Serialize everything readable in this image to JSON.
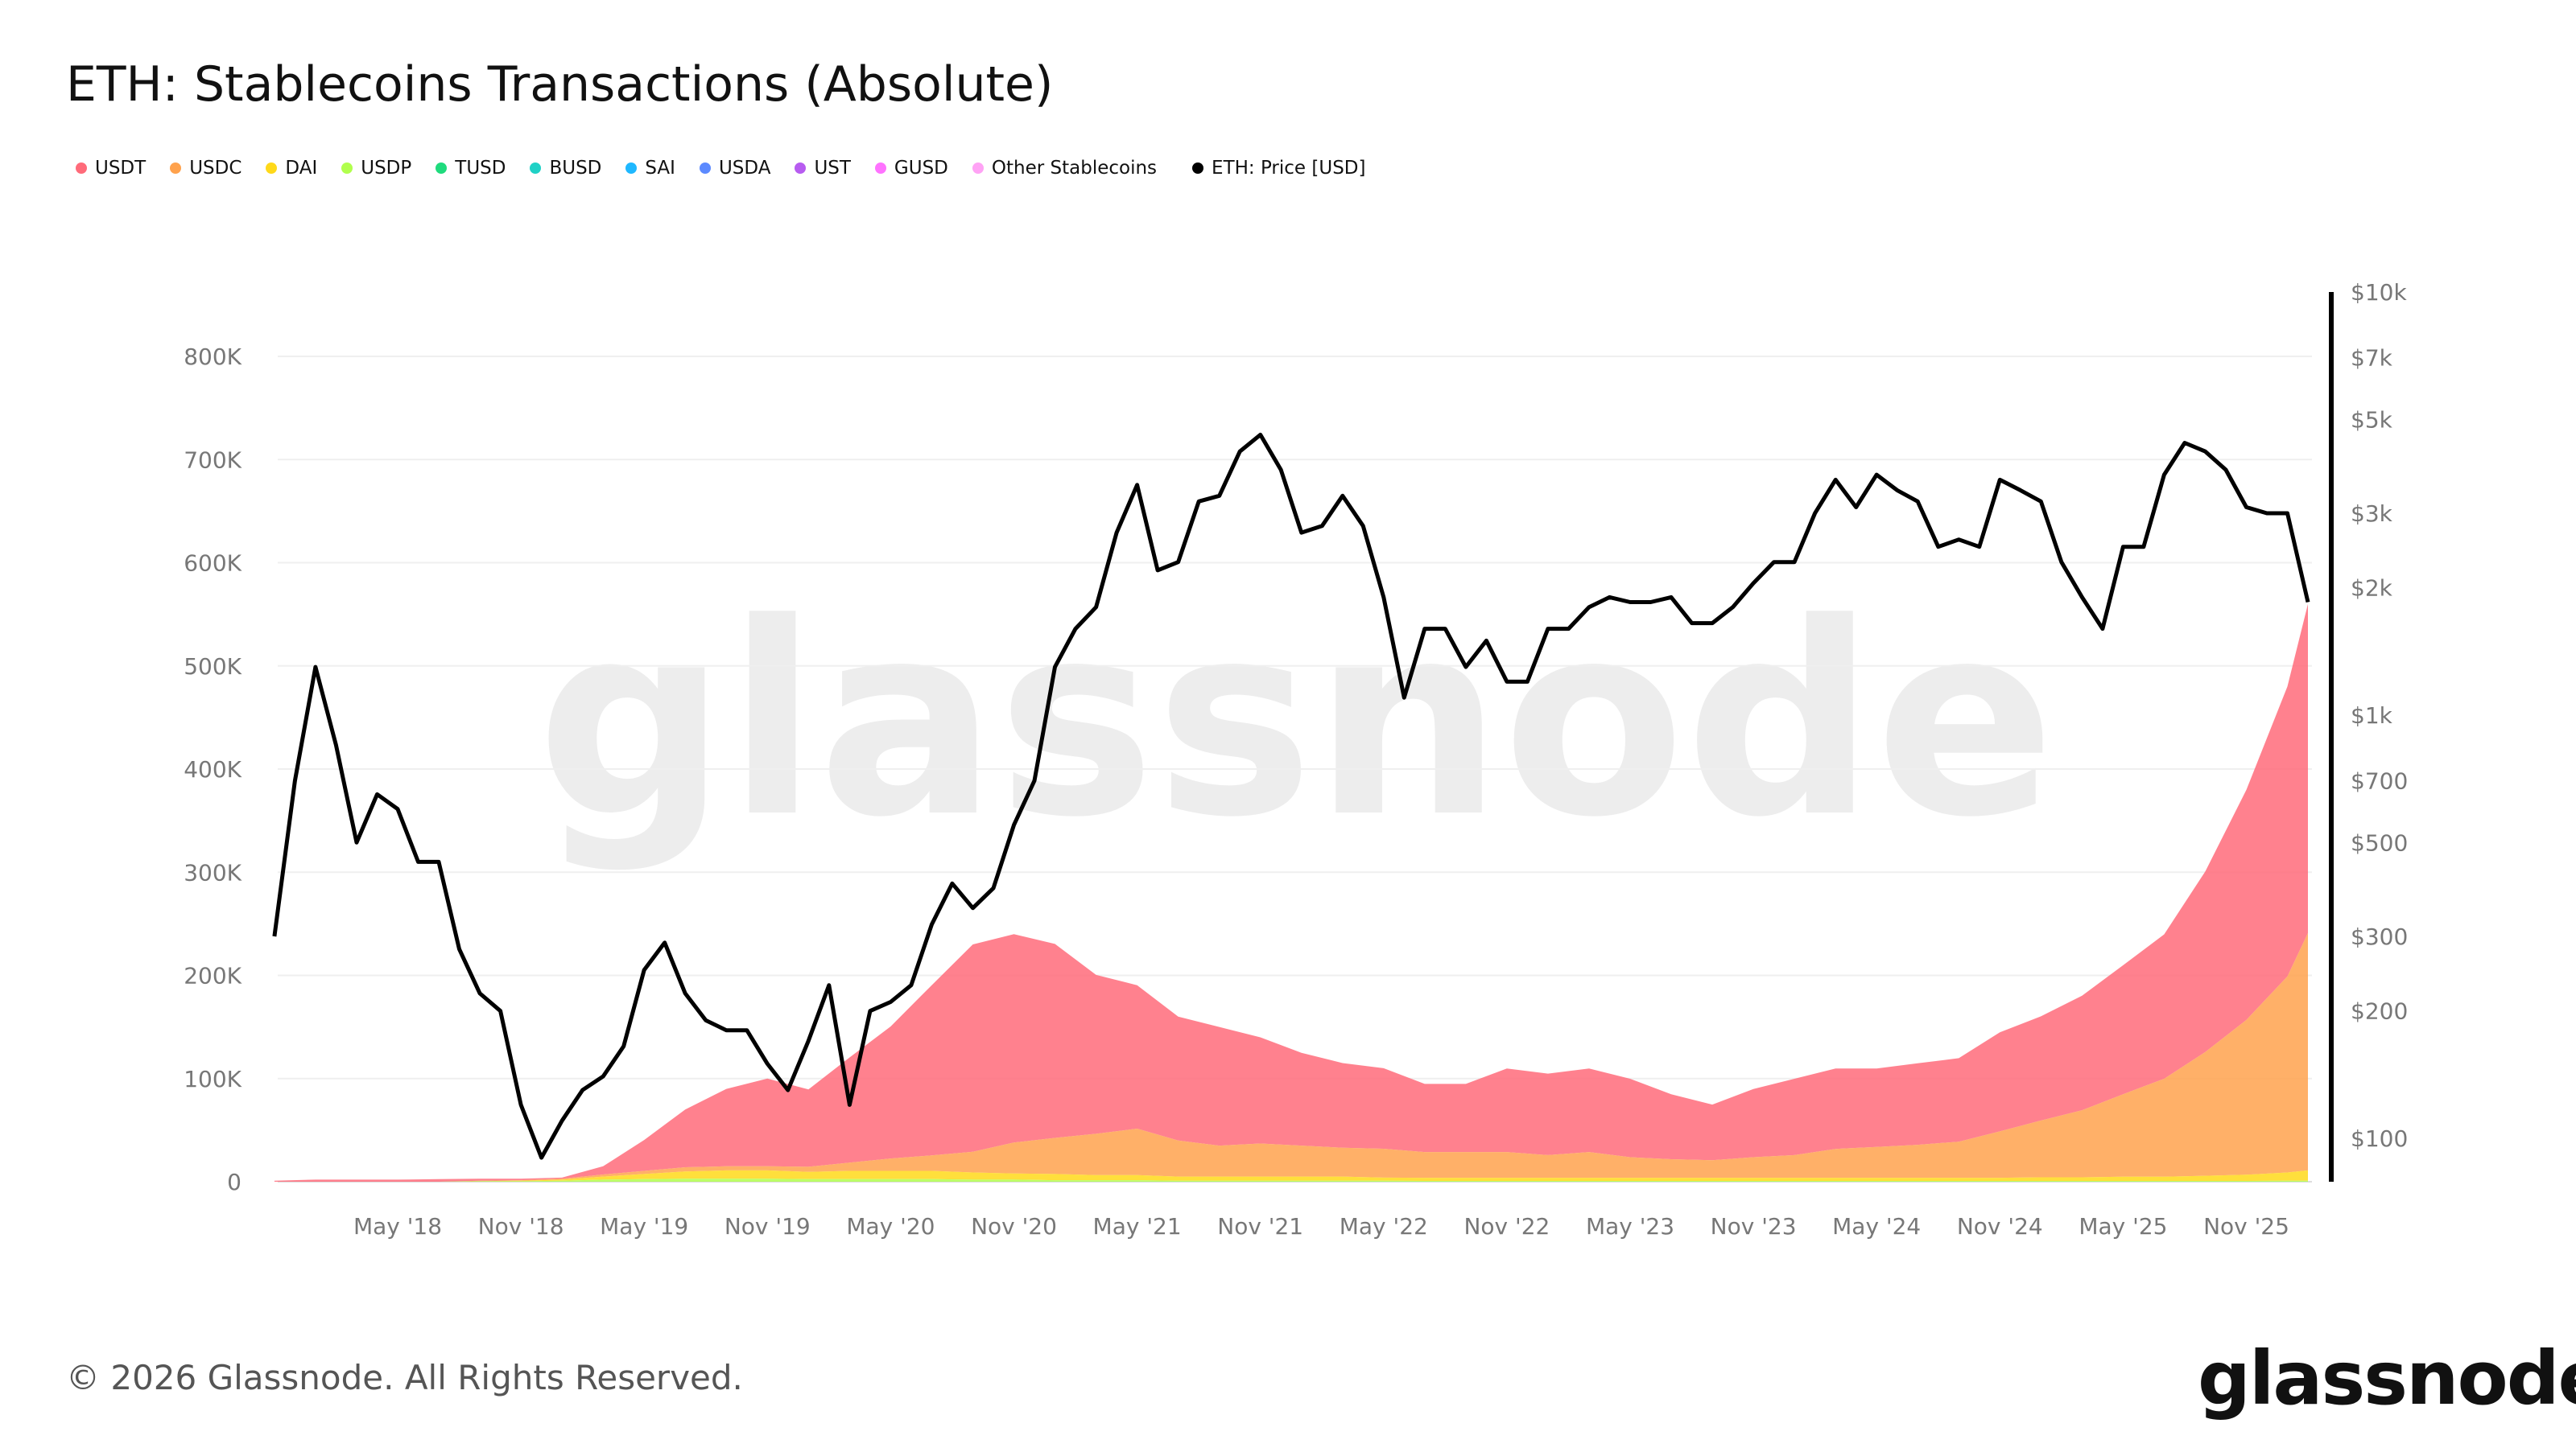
{
  "chart_data": {
    "type": "area",
    "title": "ETH: Stablecoins Transactions (Absolute)",
    "legend": [
      {
        "name": "USDT",
        "color": "#ff6b7a"
      },
      {
        "name": "USDC",
        "color": "#ffa24d"
      },
      {
        "name": "DAI",
        "color": "#ffd91a"
      },
      {
        "name": "USDP",
        "color": "#b1ff4d"
      },
      {
        "name": "TUSD",
        "color": "#1fdb7d"
      },
      {
        "name": "BUSD",
        "color": "#1fd1c6"
      },
      {
        "name": "SAI",
        "color": "#1fb8ff"
      },
      {
        "name": "USDA",
        "color": "#5c8aff"
      },
      {
        "name": "UST",
        "color": "#b75cf0"
      },
      {
        "name": "GUSD",
        "color": "#ff73ff"
      },
      {
        "name": "Other Stablecoins",
        "color": "#ffa3f5"
      },
      {
        "name": "ETH: Price [USD]",
        "color": "#000000"
      }
    ],
    "legend_placement": "top-left",
    "y_left": {
      "ylim": [
        0,
        800000
      ],
      "ticks": [
        "0",
        "100K",
        "200K",
        "300K",
        "400K",
        "500K",
        "600K",
        "700K",
        "800K"
      ],
      "grid": true
    },
    "y_right": {
      "scale": "log",
      "ylim": [
        80,
        10000
      ],
      "ticks": [
        {
          "v": 10000,
          "label": "$10k"
        },
        {
          "v": 7000,
          "label": "$7k"
        },
        {
          "v": 5000,
          "label": "$5k"
        },
        {
          "v": 3000,
          "label": "$3k"
        },
        {
          "v": 2000,
          "label": "$2k"
        },
        {
          "v": 1000,
          "label": "$1k"
        },
        {
          "v": 700,
          "label": "$700"
        },
        {
          "v": 500,
          "label": "$500"
        },
        {
          "v": 300,
          "label": "$300"
        },
        {
          "v": 200,
          "label": "$200"
        },
        {
          "v": 100,
          "label": "$100"
        }
      ]
    },
    "x_ticks": [
      {
        "d": "2018-05",
        "label": "May '18"
      },
      {
        "d": "2018-11",
        "label": "Nov '18"
      },
      {
        "d": "2019-05",
        "label": "May '19"
      },
      {
        "d": "2019-11",
        "label": "Nov '19"
      },
      {
        "d": "2020-05",
        "label": "May '20"
      },
      {
        "d": "2020-11",
        "label": "Nov '20"
      },
      {
        "d": "2021-05",
        "label": "May '21"
      },
      {
        "d": "2021-11",
        "label": "Nov '21"
      },
      {
        "d": "2022-05",
        "label": "May '22"
      },
      {
        "d": "2022-11",
        "label": "Nov '22"
      },
      {
        "d": "2023-05",
        "label": "May '23"
      },
      {
        "d": "2023-11",
        "label": "Nov '23"
      },
      {
        "d": "2024-05",
        "label": "May '24"
      },
      {
        "d": "2024-11",
        "label": "Nov '24"
      },
      {
        "d": "2025-05",
        "label": "May '25"
      },
      {
        "d": "2025-11",
        "label": "Nov '25"
      }
    ],
    "stable_dates": [
      "2017-11",
      "2018-01",
      "2018-03",
      "2018-05",
      "2018-07",
      "2018-09",
      "2018-11",
      "2019-01",
      "2019-03",
      "2019-05",
      "2019-07",
      "2019-09",
      "2019-11",
      "2020-01",
      "2020-03",
      "2020-05",
      "2020-07",
      "2020-09",
      "2020-11",
      "2021-01",
      "2021-03",
      "2021-05",
      "2021-07",
      "2021-09",
      "2021-11",
      "2022-01",
      "2022-03",
      "2022-05",
      "2022-07",
      "2022-09",
      "2022-11",
      "2023-01",
      "2023-03",
      "2023-05",
      "2023-07",
      "2023-09",
      "2023-11",
      "2024-01",
      "2024-03",
      "2024-05",
      "2024-07",
      "2024-09",
      "2024-11",
      "2025-01",
      "2025-03",
      "2025-05",
      "2025-07",
      "2025-09",
      "2025-11",
      "2026-01",
      "2026-02"
    ],
    "series": [
      {
        "name": "USDP",
        "values": [
          0,
          0,
          0,
          0,
          0,
          500,
          500,
          1000,
          2000,
          2500,
          3000,
          3000,
          3000,
          2500,
          2500,
          2500,
          2500,
          2000,
          2000,
          1500,
          1500,
          1500,
          1000,
          1000,
          1000,
          1000,
          1000,
          1000,
          800,
          800,
          800,
          800,
          800,
          800,
          800,
          800,
          800,
          800,
          800,
          800,
          800,
          800,
          800,
          800,
          800,
          800,
          800,
          800,
          800,
          1000,
          1000
        ]
      },
      {
        "name": "DAI",
        "values": [
          0,
          0,
          0,
          0,
          0,
          0,
          500,
          1000,
          3000,
          5000,
          7000,
          8000,
          8000,
          7000,
          8000,
          8000,
          8000,
          7000,
          6000,
          6000,
          5000,
          5000,
          4000,
          4000,
          4000,
          4000,
          4000,
          3000,
          3000,
          3000,
          3000,
          3000,
          3000,
          3000,
          3000,
          3000,
          3000,
          3000,
          3000,
          3000,
          3000,
          3000,
          3000,
          3500,
          3500,
          4000,
          4000,
          5000,
          6000,
          8000,
          10000
        ]
      },
      {
        "name": "USDC",
        "values": [
          0,
          0,
          0,
          0,
          0,
          500,
          500,
          1000,
          2000,
          3000,
          4000,
          4000,
          4000,
          5000,
          8000,
          12000,
          15000,
          20000,
          30000,
          35000,
          40000,
          45000,
          35000,
          30000,
          32000,
          30000,
          28000,
          28000,
          25000,
          25000,
          25000,
          22000,
          25000,
          20000,
          18000,
          17000,
          20000,
          22000,
          28000,
          30000,
          32000,
          35000,
          45000,
          55000,
          65000,
          80000,
          95000,
          120000,
          150000,
          190000,
          230000
        ]
      },
      {
        "name": "USDT",
        "values": [
          1000,
          2000,
          2000,
          2000,
          2500,
          2000,
          1500,
          1000,
          8000,
          30000,
          56000,
          75000,
          85000,
          75000,
          102000,
          128000,
          165000,
          201000,
          202000,
          188000,
          154000,
          139000,
          120000,
          115000,
          103000,
          90000,
          82000,
          78000,
          66000,
          66000,
          81000,
          79000,
          81000,
          76000,
          63000,
          54000,
          66000,
          74000,
          78000,
          76000,
          79000,
          81000,
          96000,
          101000,
          111000,
          125000,
          140000,
          175000,
          223000,
          281000,
          319000
        ]
      }
    ],
    "price_dates": [
      "2017-11",
      "2017-12",
      "2018-01",
      "2018-02",
      "2018-03",
      "2018-04",
      "2018-05",
      "2018-06",
      "2018-07",
      "2018-08",
      "2018-09",
      "2018-10",
      "2018-11",
      "2018-12",
      "2019-01",
      "2019-02",
      "2019-03",
      "2019-04",
      "2019-05",
      "2019-06",
      "2019-07",
      "2019-08",
      "2019-09",
      "2019-10",
      "2019-11",
      "2019-12",
      "2020-01",
      "2020-02",
      "2020-03",
      "2020-04",
      "2020-05",
      "2020-06",
      "2020-07",
      "2020-08",
      "2020-09",
      "2020-10",
      "2020-11",
      "2020-12",
      "2021-01",
      "2021-02",
      "2021-03",
      "2021-04",
      "2021-05",
      "2021-06",
      "2021-07",
      "2021-08",
      "2021-09",
      "2021-10",
      "2021-11",
      "2021-12",
      "2022-01",
      "2022-02",
      "2022-03",
      "2022-04",
      "2022-05",
      "2022-06",
      "2022-07",
      "2022-08",
      "2022-09",
      "2022-10",
      "2022-11",
      "2022-12",
      "2023-01",
      "2023-02",
      "2023-03",
      "2023-04",
      "2023-05",
      "2023-06",
      "2023-07",
      "2023-08",
      "2023-09",
      "2023-10",
      "2023-11",
      "2023-12",
      "2024-01",
      "2024-02",
      "2024-03",
      "2024-04",
      "2024-05",
      "2024-06",
      "2024-07",
      "2024-08",
      "2024-09",
      "2024-10",
      "2024-11",
      "2024-12",
      "2025-01",
      "2025-02",
      "2025-03",
      "2025-04",
      "2025-05",
      "2025-06",
      "2025-07",
      "2025-08",
      "2025-09",
      "2025-10",
      "2025-11",
      "2025-12",
      "2026-01",
      "2026-02"
    ],
    "price_values": [
      300,
      700,
      1300,
      850,
      500,
      650,
      600,
      450,
      450,
      280,
      220,
      200,
      120,
      90,
      110,
      130,
      140,
      165,
      250,
      290,
      220,
      190,
      180,
      180,
      150,
      130,
      170,
      230,
      120,
      200,
      210,
      230,
      320,
      400,
      350,
      390,
      550,
      700,
      1300,
      1600,
      1800,
      2700,
      3500,
      2200,
      2300,
      3200,
      3300,
      4200,
      4600,
      3800,
      2700,
      2800,
      3300,
      2800,
      1900,
      1100,
      1600,
      1600,
      1300,
      1500,
      1200,
      1200,
      1600,
      1600,
      1800,
      1900,
      1850,
      1850,
      1900,
      1650,
      1650,
      1800,
      2050,
      2300,
      2300,
      3000,
      3600,
      3100,
      3700,
      3400,
      3200,
      2500,
      2600,
      2500,
      3600,
      3400,
      3200,
      2300,
      1900,
      1600,
      2500,
      2500,
      3700,
      4400,
      4200,
      3800,
      3100,
      3000,
      3000,
      1850
    ]
  },
  "watermark": "glassnode",
  "footer": "© 2026 Glassnode. All Rights Reserved.",
  "logo": "glassnode"
}
